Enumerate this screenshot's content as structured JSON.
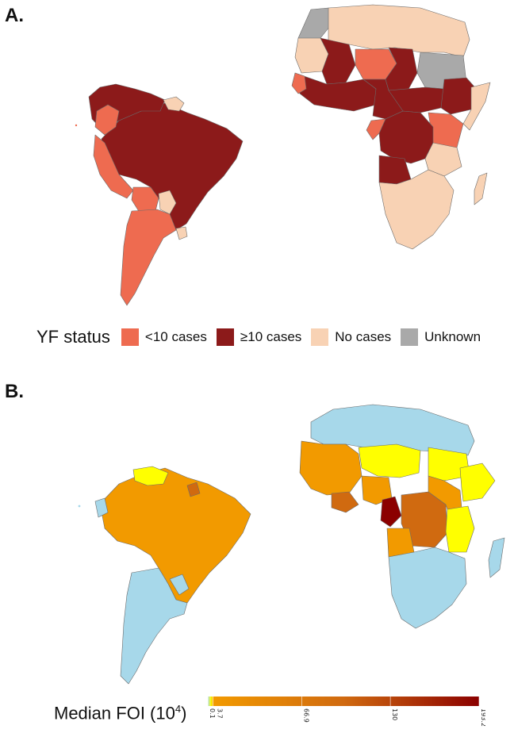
{
  "panel_a": {
    "label": "A.",
    "legend_title": "YF status",
    "categories": [
      {
        "key": "lt10",
        "label": "<10 cases",
        "color": "#ee6b50"
      },
      {
        "key": "ge10",
        "label": "≥10 cases",
        "color": "#8c1a1a"
      },
      {
        "key": "none",
        "label": "No cases",
        "color": "#f8d2b4"
      },
      {
        "key": "unknown",
        "label": "Unknown",
        "color": "#a9a9a9"
      }
    ]
  },
  "panel_b": {
    "label": "B.",
    "legend_title": "Median FOI (10",
    "legend_title_sup": "4",
    "legend_title_close": ")",
    "scale_colors": {
      "zero": "#a7d8ea",
      "low": "#ffff00",
      "mid": "#f29a00",
      "high": "#d06a10",
      "max": "#8b0000"
    },
    "colorbar": {
      "min": 0,
      "max": 193.2,
      "ticks": [
        "0.1",
        "3.7",
        "66.9",
        "130",
        "193.2"
      ],
      "tick_values": [
        0.1,
        3.7,
        66.9,
        130,
        193.2
      ]
    }
  }
}
